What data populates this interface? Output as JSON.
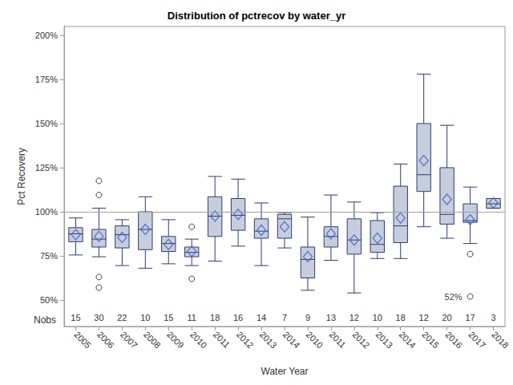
{
  "chart_data": {
    "type": "boxplot",
    "title": "Distribution of pctrecov by water_yr",
    "x_label": "Water Year",
    "y_label": "Pct Recovery",
    "categories": [
      "2005",
      "2006",
      "2007",
      "2008",
      "2009",
      "2010",
      "2011",
      "2012",
      "2013",
      "2014",
      "2010",
      "2011",
      "2012",
      "2013",
      "2014",
      "2015",
      "2016",
      "2017",
      "2018"
    ],
    "boxes": [
      [
        75.5,
        83,
        87.5,
        91,
        96.5
      ],
      [
        74.5,
        80,
        84.5,
        90,
        102
      ],
      [
        69.5,
        79.5,
        87,
        92,
        95.5
      ],
      [
        68,
        78.5,
        90,
        100,
        108.5
      ],
      [
        70.5,
        77.5,
        82,
        86,
        95.5
      ],
      [
        69.5,
        74.5,
        77,
        80,
        84.5
      ],
      [
        72,
        86,
        97.5,
        108.5,
        120
      ],
      [
        80.5,
        89.5,
        98,
        107.5,
        118.5
      ],
      [
        69.5,
        85,
        89,
        96,
        105
      ],
      [
        79.5,
        85,
        96,
        98.5,
        99.5
      ],
      [
        55.5,
        62.5,
        73,
        80,
        97
      ],
      [
        72.5,
        80,
        86,
        91.5,
        109.5
      ],
      [
        54,
        76,
        84,
        96,
        105.5
      ],
      [
        73.5,
        77,
        81.5,
        95,
        99.5
      ],
      [
        73.5,
        82.5,
        92,
        114.5,
        127
      ],
      [
        91.5,
        111.5,
        121,
        150,
        178
      ],
      [
        85,
        93,
        98.5,
        125,
        149
      ],
      [
        82,
        94,
        95,
        104.5,
        114
      ],
      [
        102,
        102,
        104.5,
        107.5,
        107.5
      ]
    ],
    "means": [
      87,
      86,
      85.5,
      90,
      81.5,
      77.5,
      97.5,
      98.5,
      89.5,
      91.5,
      74.5,
      87.5,
      84,
      85,
      96.5,
      129,
      107,
      95.5,
      105
    ],
    "outliers": [
      {
        "category_index": 1,
        "value": 117.5
      },
      {
        "category_index": 1,
        "value": 109.5
      },
      {
        "category_index": 1,
        "value": 63
      },
      {
        "category_index": 1,
        "value": 57
      },
      {
        "category_index": 5,
        "value": 91.5
      },
      {
        "category_index": 5,
        "value": 62
      },
      {
        "category_index": 17,
        "value": 76
      },
      {
        "category_index": 17,
        "value": 52,
        "label": "52%"
      }
    ],
    "nobs_label": "Nobs",
    "nobs": [
      15,
      30,
      22,
      10,
      15,
      11,
      18,
      16,
      14,
      7,
      9,
      13,
      12,
      10,
      18,
      12,
      20,
      17,
      3
    ],
    "reference_line": 100,
    "ylim": [
      35,
      205
    ],
    "yticks": [
      {
        "value": 50,
        "label": "50%"
      },
      {
        "value": 75,
        "label": "75%"
      },
      {
        "value": 100,
        "label": "100%"
      },
      {
        "value": 125,
        "label": "125%"
      },
      {
        "value": 150,
        "label": "150%"
      },
      {
        "value": 175,
        "label": "175%"
      },
      {
        "value": 200,
        "label": "200%"
      }
    ],
    "color": "#c6cede",
    "grid": false
  }
}
